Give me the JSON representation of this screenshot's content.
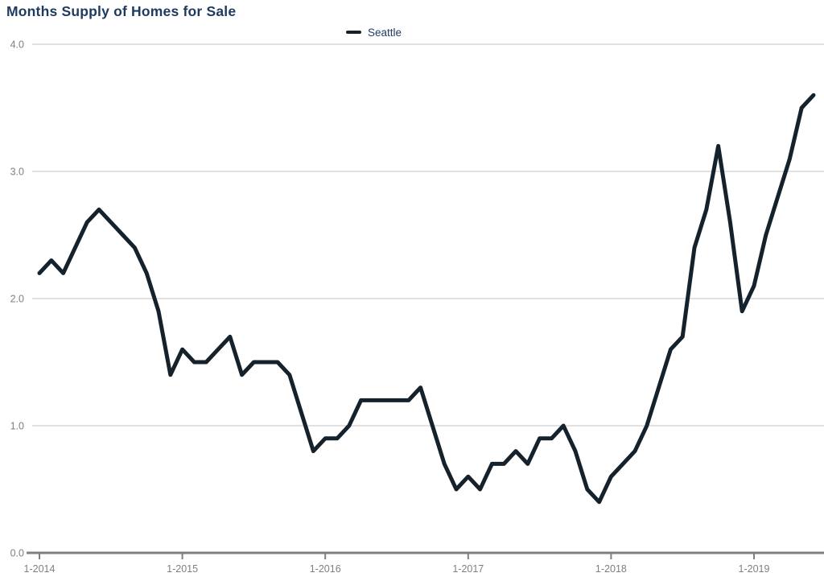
{
  "title": "Months Supply of Homes for Sale",
  "legend": {
    "label": "Seattle"
  },
  "colors": {
    "title": "#1E3A5F",
    "line": "#16222B",
    "grid": "#D9D9D9",
    "axis": "#7F7F7F",
    "tick_label": "#7F7F7F"
  },
  "chart_data": {
    "type": "line",
    "title": "Months Supply of Homes for Sale",
    "legend_entries": [
      "Seattle"
    ],
    "legend_position": "top-center",
    "grid": "horizontal",
    "x_unit": "month",
    "x_range": [
      "1-2014",
      "6-2019"
    ],
    "x_tick_labels": [
      "1-2014",
      "1-2015",
      "1-2016",
      "1-2017",
      "1-2018",
      "1-2019"
    ],
    "x_tick_month_indices": [
      0,
      12,
      24,
      36,
      48,
      60
    ],
    "y_ticks": [
      0.0,
      1.0,
      2.0,
      3.0,
      4.0
    ],
    "y_tick_labels": [
      "0.0",
      "1.0",
      "2.0",
      "3.0",
      "4.0"
    ],
    "ylim": [
      0.0,
      4.0
    ],
    "series": [
      {
        "name": "Seattle",
        "months": [
          "1-2014",
          "2-2014",
          "3-2014",
          "4-2014",
          "5-2014",
          "6-2014",
          "7-2014",
          "8-2014",
          "9-2014",
          "10-2014",
          "11-2014",
          "12-2014",
          "1-2015",
          "2-2015",
          "3-2015",
          "4-2015",
          "5-2015",
          "6-2015",
          "7-2015",
          "8-2015",
          "9-2015",
          "10-2015",
          "11-2015",
          "12-2015",
          "1-2016",
          "2-2016",
          "3-2016",
          "4-2016",
          "5-2016",
          "6-2016",
          "7-2016",
          "8-2016",
          "9-2016",
          "10-2016",
          "11-2016",
          "12-2016",
          "1-2017",
          "2-2017",
          "3-2017",
          "4-2017",
          "5-2017",
          "6-2017",
          "7-2017",
          "8-2017",
          "9-2017",
          "10-2017",
          "11-2017",
          "12-2017",
          "1-2018",
          "2-2018",
          "3-2018",
          "4-2018",
          "5-2018",
          "6-2018",
          "7-2018",
          "8-2018",
          "9-2018",
          "10-2018",
          "11-2018",
          "12-2018",
          "1-2019",
          "2-2019",
          "3-2019",
          "4-2019",
          "5-2019",
          "6-2019"
        ],
        "values": [
          2.2,
          2.3,
          2.2,
          2.4,
          2.6,
          2.7,
          2.6,
          2.5,
          2.4,
          2.2,
          1.9,
          1.4,
          1.6,
          1.5,
          1.5,
          1.6,
          1.7,
          1.4,
          1.5,
          1.5,
          1.5,
          1.4,
          1.1,
          0.8,
          0.9,
          0.9,
          1.0,
          1.2,
          1.2,
          1.2,
          1.2,
          1.2,
          1.3,
          1.0,
          0.7,
          0.5,
          0.6,
          0.5,
          0.7,
          0.7,
          0.8,
          0.7,
          0.9,
          0.9,
          1.0,
          0.8,
          0.5,
          0.4,
          0.6,
          0.7,
          0.8,
          1.0,
          1.3,
          1.6,
          1.7,
          2.4,
          2.7,
          3.2,
          2.6,
          1.9,
          2.1,
          2.5,
          2.8,
          3.1,
          3.5,
          3.6
        ]
      }
    ]
  }
}
